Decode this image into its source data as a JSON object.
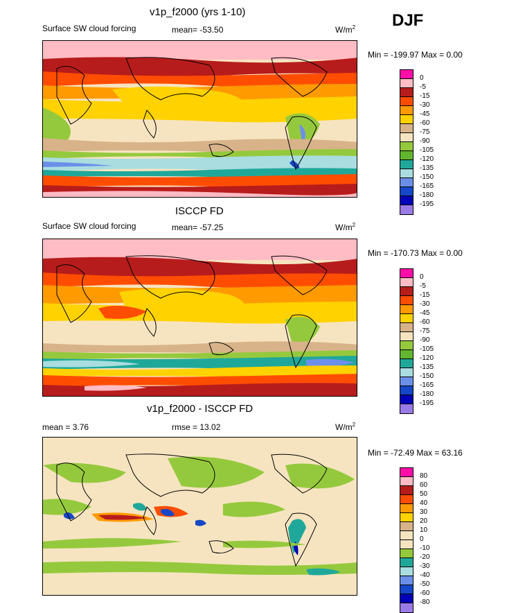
{
  "season": "DJF",
  "panels": [
    {
      "title": "v1p_f2000 (yrs 1-10)",
      "left_label": "Surface SW cloud forcing",
      "stat_label": "mean=",
      "stat_value": "-53.50",
      "units_base": "W/m",
      "units_sup": "2",
      "min_label": "Min =",
      "min_value": "-199.97",
      "max_label": "Max =",
      "max_value": "0.00",
      "levels": [
        "0",
        "-5",
        "-15",
        "-30",
        "-45",
        "-60",
        "-75",
        "-90",
        "-105",
        "-120",
        "-135",
        "-150",
        "-165",
        "-180",
        "-195"
      ],
      "colors": [
        "#ff0ea8",
        "#ffbcc4",
        "#b71c1c",
        "#ff4d00",
        "#ff9a00",
        "#ffd200",
        "#d8b38a",
        "#f6e4c0",
        "#95c93d",
        "#62b52e",
        "#1fa89a",
        "#a9dde0",
        "#6b8fe8",
        "#1547c8",
        "#0000b8",
        "#9a7be6"
      ]
    },
    {
      "title": "ISCCP FD",
      "left_label": "Surface SW cloud forcing",
      "stat_label": "mean=",
      "stat_value": "-57.25",
      "units_base": "W/m",
      "units_sup": "2",
      "min_label": "Min =",
      "min_value": "-170.73",
      "max_label": "Max =",
      "max_value": "0.00",
      "levels": [
        "0",
        "-5",
        "-15",
        "-30",
        "-45",
        "-60",
        "-75",
        "-90",
        "-105",
        "-120",
        "-135",
        "-150",
        "-165",
        "-180",
        "-195"
      ],
      "colors": [
        "#ff0ea8",
        "#ffbcc4",
        "#b71c1c",
        "#ff4d00",
        "#ff9a00",
        "#ffd200",
        "#d8b38a",
        "#f6e4c0",
        "#95c93d",
        "#62b52e",
        "#1fa89a",
        "#a9dde0",
        "#6b8fe8",
        "#1547c8",
        "#0000b8",
        "#9a7be6"
      ]
    },
    {
      "title": "v1p_f2000 - ISCCP FD",
      "left_label": "mean =",
      "left_value": "3.76",
      "stat_label": "rmse =",
      "stat_value": "13.02",
      "units_base": "W/m",
      "units_sup": "2",
      "min_label": "Min =",
      "min_value": "-72.49",
      "max_label": "Max =",
      "max_value": "63.16",
      "levels": [
        "80",
        "60",
        "50",
        "40",
        "30",
        "20",
        "10",
        "0",
        "-10",
        "-20",
        "-30",
        "-40",
        "-50",
        "-60",
        "-80"
      ],
      "colors": [
        "#ff0ea8",
        "#ffbcc4",
        "#b71c1c",
        "#ff4d00",
        "#ff9a00",
        "#ffd200",
        "#d8b38a",
        "#f6e4c0",
        "#f6e4c0",
        "#95c93d",
        "#1fa89a",
        "#a9dde0",
        "#6b8fe8",
        "#1547c8",
        "#0000b8",
        "#9a7be6"
      ]
    }
  ]
}
